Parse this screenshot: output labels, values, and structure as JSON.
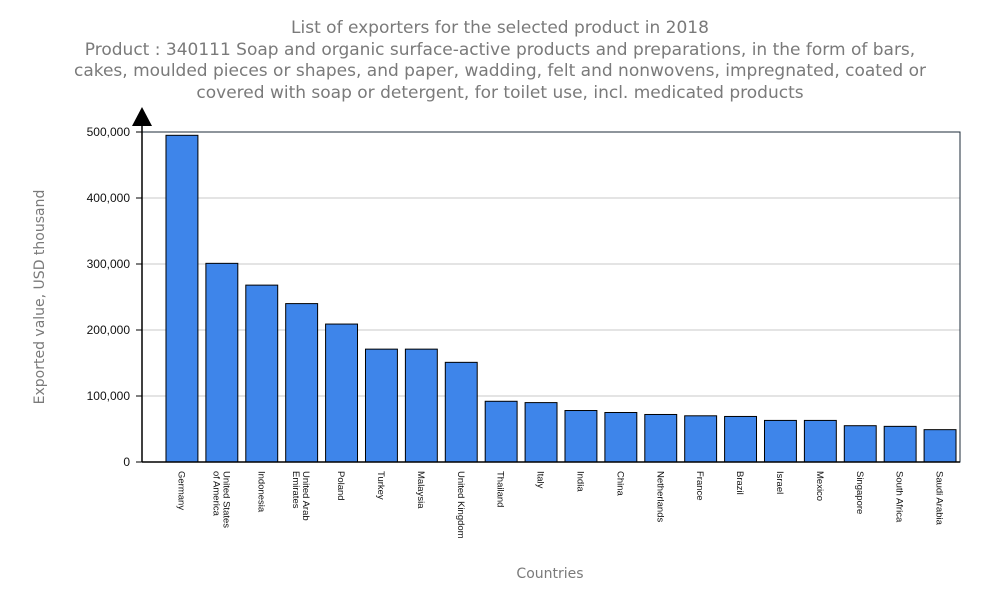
{
  "chart_data": {
    "type": "bar",
    "title": "List of exporters for the selected product in 2018",
    "subtitle_lines": [
      "Product : 340111 Soap and organic surface-active products and preparations, in the form of bars,",
      "cakes, moulded pieces or shapes, and paper, wadding, felt and nonwovens, impregnated, coated or",
      "covered with soap or detergent, for toilet use, incl. medicated products"
    ],
    "xlabel": "Countries",
    "ylabel": "Exported value, USD thousand",
    "ylim": [
      0,
      500000
    ],
    "yticks": [
      0,
      100000,
      200000,
      300000,
      400000,
      500000
    ],
    "ytick_labels": [
      "0",
      "100,000",
      "200,000",
      "300,000",
      "400,000",
      "500,000"
    ],
    "grid": true,
    "bar_color": "#3e85ea",
    "categories": [
      [
        "Germany"
      ],
      [
        "United States",
        "of America"
      ],
      [
        "Indonesia"
      ],
      [
        "United Arab",
        "Emirates"
      ],
      [
        "Poland"
      ],
      [
        "Turkey"
      ],
      [
        "Malaysia"
      ],
      [
        "United Kingdom"
      ],
      [
        "Thailand"
      ],
      [
        "Italy"
      ],
      [
        "India"
      ],
      [
        "China"
      ],
      [
        "Netherlands"
      ],
      [
        "France"
      ],
      [
        "Brazil"
      ],
      [
        "Israel"
      ],
      [
        "Mexico"
      ],
      [
        "Singapore"
      ],
      [
        "South Africa"
      ],
      [
        "Saudi Arabia"
      ]
    ],
    "values": [
      495000,
      301000,
      268000,
      240000,
      209000,
      171000,
      171000,
      151000,
      92000,
      90000,
      78000,
      75000,
      72000,
      70000,
      69000,
      63000,
      63000,
      55000,
      54000,
      49000
    ]
  }
}
